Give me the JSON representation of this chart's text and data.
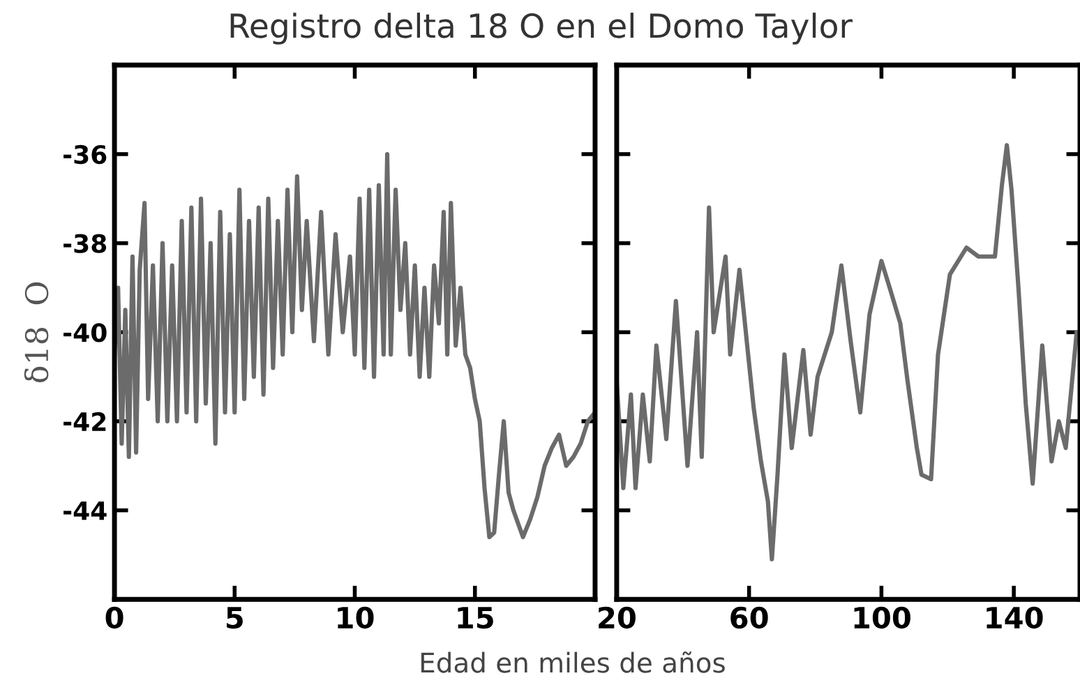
{
  "chart_data": [
    {
      "type": "line",
      "title": "Registro delta 18 O en el Domo Taylor",
      "xlabel": "Edad en miles de años",
      "ylabel": "δ18  O",
      "xlim": [
        0,
        20
      ],
      "xticks": [
        0,
        5,
        10,
        15,
        {
          "value": 20,
          "label": null
        }
      ],
      "ylim": [
        -46,
        -34
      ],
      "yticks": [
        -36,
        -38,
        -40,
        -42,
        -44
      ],
      "grid": false,
      "legend": false,
      "series": [
        {
          "color": "#6b6b6b",
          "x": [
            0,
            0.15,
            0.3,
            0.45,
            0.6,
            0.75,
            0.9,
            1.05,
            1.25,
            1.4,
            1.6,
            1.8,
            2.0,
            2.2,
            2.4,
            2.6,
            2.8,
            3.0,
            3.2,
            3.4,
            3.6,
            3.8,
            4.0,
            4.2,
            4.4,
            4.6,
            4.8,
            5.0,
            5.2,
            5.4,
            5.6,
            5.8,
            6.0,
            6.2,
            6.4,
            6.6,
            6.8,
            7.0,
            7.2,
            7.4,
            7.6,
            7.8,
            8.0,
            8.3,
            8.6,
            8.9,
            9.2,
            9.5,
            9.8,
            10.0,
            10.2,
            10.4,
            10.6,
            10.8,
            11.0,
            11.2,
            11.35,
            11.5,
            11.7,
            11.9,
            12.1,
            12.3,
            12.5,
            12.7,
            12.9,
            13.1,
            13.3,
            13.5,
            13.7,
            13.85,
            14.0,
            14.2,
            14.4,
            14.6,
            14.8,
            15.0,
            15.2,
            15.4,
            15.6,
            15.8,
            16.0,
            16.2,
            16.4,
            16.6,
            16.8,
            17.0,
            17.3,
            17.6,
            17.9,
            18.2,
            18.5,
            18.8,
            19.1,
            19.4,
            19.7,
            20.0
          ],
          "values": [
            -40.5,
            -39.0,
            -42.5,
            -39.5,
            -42.8,
            -38.3,
            -42.7,
            -38.6,
            -37.1,
            -41.5,
            -38.5,
            -42.0,
            -38.0,
            -42.0,
            -38.5,
            -42.0,
            -37.5,
            -41.8,
            -37.2,
            -42.0,
            -37.0,
            -41.6,
            -38.0,
            -42.5,
            -37.3,
            -41.8,
            -37.8,
            -41.8,
            -36.8,
            -41.5,
            -37.5,
            -41.0,
            -37.2,
            -41.4,
            -37.0,
            -40.8,
            -37.5,
            -40.5,
            -36.8,
            -40.0,
            -36.5,
            -39.5,
            -37.5,
            -40.2,
            -37.3,
            -40.5,
            -37.8,
            -40.0,
            -38.3,
            -40.5,
            -37.0,
            -40.8,
            -36.8,
            -41.0,
            -36.7,
            -40.5,
            -36.0,
            -40.5,
            -36.8,
            -39.5,
            -38.0,
            -40.5,
            -38.5,
            -41.0,
            -39.0,
            -41.0,
            -38.5,
            -39.8,
            -37.3,
            -40.5,
            -37.1,
            -40.3,
            -39.0,
            -40.5,
            -40.8,
            -41.5,
            -42.0,
            -43.5,
            -44.6,
            -44.5,
            -43.2,
            -42.0,
            -43.6,
            -44.0,
            -44.3,
            -44.6,
            -44.2,
            -43.7,
            -43.0,
            -42.6,
            -42.3,
            -43.0,
            -42.8,
            -42.5,
            -42.0,
            -41.8
          ]
        }
      ]
    },
    {
      "type": "line",
      "xlim": [
        20,
        160
      ],
      "xticks": [
        20,
        60,
        100,
        140
      ],
      "ylim": [
        -46,
        -34
      ],
      "yticks": [
        -36,
        -38,
        -40,
        -42,
        -44
      ],
      "tick_labels": "x",
      "grid": false,
      "legend": false,
      "series": [
        {
          "color": "#6b6b6b",
          "x": [
            20,
            22,
            24.3,
            25.7,
            27.9,
            30,
            32,
            35,
            37.9,
            41.4,
            44.3,
            45.7,
            47.9,
            49.3,
            52.9,
            54.3,
            57.1,
            59.3,
            61.4,
            63.6,
            65.7,
            66.9,
            68.6,
            70.7,
            72.9,
            76.4,
            78.6,
            80.7,
            85,
            87.9,
            90.7,
            93.6,
            96.4,
            100,
            102.9,
            105.7,
            107.9,
            110.7,
            112.1,
            115,
            117.1,
            120.7,
            125.7,
            129.3,
            134.3,
            136.4,
            137.9,
            139.3,
            141.4,
            143.6,
            145.7,
            148.6,
            151.4,
            153.6,
            155.7,
            159
          ],
          "values": [
            -41.1,
            -43.5,
            -41.4,
            -43.5,
            -41.4,
            -42.9,
            -40.3,
            -42.4,
            -39.3,
            -43.0,
            -40.0,
            -42.8,
            -37.2,
            -40.0,
            -38.3,
            -40.5,
            -38.6,
            -40.2,
            -41.7,
            -42.9,
            -43.8,
            -45.1,
            -43.2,
            -40.5,
            -42.6,
            -40.4,
            -42.3,
            -41.0,
            -40.0,
            -38.5,
            -40.2,
            -41.8,
            -39.6,
            -38.4,
            -39.1,
            -39.8,
            -41.1,
            -42.6,
            -43.2,
            -43.3,
            -40.5,
            -38.7,
            -38.1,
            -38.3,
            -38.3,
            -36.7,
            -35.8,
            -36.8,
            -39.0,
            -41.6,
            -43.4,
            -40.3,
            -42.9,
            -42.0,
            -42.6,
            -40.0
          ]
        }
      ]
    }
  ]
}
